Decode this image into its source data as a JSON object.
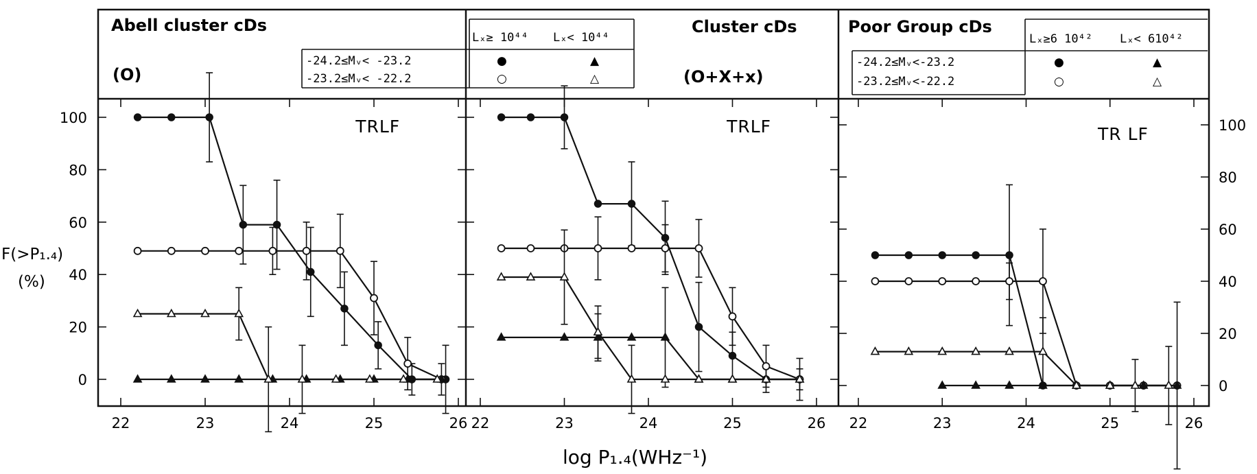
{
  "header": {
    "panels": [
      {
        "title": "Abell cluster cDs",
        "sample": "(O)"
      },
      {
        "title": "Cluster cDs",
        "sample": "(O+X+x)"
      },
      {
        "title": "Poor Group cDs"
      }
    ],
    "table_a": {
      "col_hi": "Lₓ≥ 10⁴⁴",
      "col_lo": "Lₓ< 10⁴⁴",
      "row1": "-24.2≤Mᵥ< -23.2",
      "row2": "-23.2≤Mᵥ< -22.2",
      "sym_filled_circle": "●",
      "sym_filled_tri": "▲",
      "sym_open_circle": "○",
      "sym_open_tri": "△"
    },
    "table_c": {
      "col_hi": "Lₓ≥6 10⁴²",
      "col_lo": "Lₓ< 610⁴²",
      "row1": "-24.2≤Mᵥ<-23.2",
      "row2": "-23.2≤Mᵥ<-22.2",
      "sym_filled_circle": "●",
      "sym_filled_tri": "▲",
      "sym_open_circle": "○",
      "sym_open_tri": "△"
    }
  },
  "axes": {
    "ylabel_line1": "F(>P₁.₄)",
    "ylabel_line2": "(%)",
    "xlabel": "log  P₁.₄(WHz⁻¹)",
    "y_ticks": [
      "0",
      "20",
      "40",
      "60",
      "80",
      "100"
    ],
    "x_ticks": [
      "22",
      "23",
      "24",
      "25",
      "26"
    ]
  },
  "chart_data": [
    {
      "type": "line",
      "panel": "Abell cluster cDs",
      "annotation": "TRLF",
      "xlabel": "log  P1.4(WHz-1)",
      "ylabel": "F(>P1.4) (%)",
      "xlim": [
        21.8,
        26.1
      ],
      "ylim": [
        -10,
        110
      ],
      "series": [
        {
          "marker": "filled-circle",
          "x": [
            22.2,
            22.6,
            23.05,
            23.45,
            23.85,
            24.25,
            24.65,
            25.05,
            25.45,
            25.85
          ],
          "y": [
            100,
            100,
            100,
            59,
            59,
            41,
            27,
            13,
            0,
            0
          ],
          "err": [
            0,
            0,
            17,
            15,
            17,
            17,
            14,
            9,
            6,
            13
          ]
        },
        {
          "marker": "open-circle",
          "x": [
            22.2,
            22.6,
            23.0,
            23.4,
            23.8,
            24.2,
            24.6,
            25.0,
            25.4,
            25.8
          ],
          "y": [
            49,
            49,
            49,
            49,
            49,
            49,
            49,
            31,
            6,
            0
          ],
          "err": [
            0,
            0,
            0,
            0,
            9,
            11,
            14,
            14,
            10,
            6
          ]
        },
        {
          "marker": "filled-triangle",
          "x": [
            22.2,
            22.6,
            23.0,
            23.4,
            23.8,
            24.2,
            24.6,
            25.0,
            25.4,
            25.8
          ],
          "y": [
            0,
            0,
            0,
            0,
            0,
            0,
            0,
            0,
            0,
            0
          ],
          "err": [
            0,
            0,
            0,
            0,
            0,
            0,
            0,
            0,
            0,
            0
          ]
        },
        {
          "marker": "open-triangle",
          "x": [
            22.2,
            22.6,
            23.0,
            23.4,
            23.75,
            24.15,
            24.55,
            24.95,
            25.35,
            25.75
          ],
          "y": [
            25,
            25,
            25,
            25,
            0,
            0,
            0,
            0,
            0,
            0
          ],
          "err": [
            0,
            0,
            0,
            10,
            20,
            13,
            0,
            0,
            0,
            0
          ]
        }
      ]
    },
    {
      "type": "line",
      "panel": "Cluster cDs",
      "annotation": "TRLF",
      "xlabel": "log  P1.4(WHz-1)",
      "ylabel": "F(>P1.4) (%)",
      "xlim": [
        21.8,
        26.1
      ],
      "ylim": [
        -10,
        110
      ],
      "series": [
        {
          "marker": "filled-circle",
          "x": [
            22.25,
            22.6,
            23.0,
            23.4,
            23.8,
            24.2,
            24.6,
            25.0,
            25.4,
            25.8
          ],
          "y": [
            100,
            100,
            100,
            67,
            67,
            54,
            20,
            9,
            0,
            0
          ],
          "err": [
            0,
            0,
            12,
            0,
            16,
            14,
            17,
            9,
            5,
            4
          ]
        },
        {
          "marker": "open-circle",
          "x": [
            22.25,
            22.6,
            23.0,
            23.4,
            23.8,
            24.2,
            24.6,
            25.0,
            25.4,
            25.8
          ],
          "y": [
            50,
            50,
            50,
            50,
            50,
            50,
            50,
            24,
            5,
            0
          ],
          "err": [
            0,
            0,
            0,
            12,
            0,
            9,
            11,
            11,
            8,
            8
          ]
        },
        {
          "marker": "filled-triangle",
          "x": [
            22.25,
            23.0,
            23.4,
            23.8,
            24.2,
            24.6,
            25.0,
            25.4,
            25.8
          ],
          "y": [
            16,
            16,
            16,
            16,
            16,
            0,
            0,
            0,
            0
          ],
          "err": [
            0,
            0,
            9,
            0,
            19,
            0,
            0,
            0,
            0
          ]
        },
        {
          "marker": "open-triangle",
          "x": [
            22.25,
            22.6,
            23.0,
            23.4,
            23.8,
            24.2,
            24.6,
            25.0,
            25.4,
            25.8
          ],
          "y": [
            39,
            39,
            39,
            18,
            0,
            0,
            0,
            0,
            0,
            0
          ],
          "err": [
            0,
            0,
            18,
            10,
            13,
            0,
            0,
            0,
            0,
            0
          ]
        }
      ]
    },
    {
      "type": "line",
      "panel": "Poor Group cDs",
      "annotation": "TR LF",
      "xlabel": "log  P1.4(WHz-1)",
      "ylabel": "F(>P1.4) (%)",
      "xlim": [
        21.8,
        26.1
      ],
      "ylim": [
        -10,
        110
      ],
      "series": [
        {
          "marker": "filled-circle",
          "x": [
            22.2,
            22.6,
            23.0,
            23.4,
            23.8,
            24.2,
            24.6,
            25.0,
            25.4,
            25.8
          ],
          "y": [
            50,
            50,
            50,
            50,
            50,
            0,
            0,
            0,
            0,
            0
          ],
          "err": [
            0,
            0,
            0,
            0,
            27,
            0,
            0,
            0,
            0,
            0
          ]
        },
        {
          "marker": "open-circle",
          "x": [
            22.2,
            22.6,
            23.0,
            23.4,
            23.8,
            24.2,
            24.6,
            25.0,
            25.4,
            25.8
          ],
          "y": [
            40,
            40,
            40,
            40,
            40,
            40,
            0,
            0,
            0,
            0
          ],
          "err": [
            0,
            0,
            0,
            0,
            7,
            20,
            0,
            0,
            0,
            0
          ]
        },
        {
          "marker": "filled-triangle",
          "x": [
            23.0,
            23.4,
            23.8,
            24.2,
            24.6,
            25.0,
            25.4,
            25.8
          ],
          "y": [
            0,
            0,
            0,
            0,
            0,
            0,
            0,
            0
          ],
          "err": [
            0,
            0,
            0,
            0,
            0,
            0,
            0,
            32
          ]
        },
        {
          "marker": "open-triangle",
          "x": [
            22.2,
            22.6,
            23.0,
            23.4,
            23.8,
            24.2,
            24.6,
            25.0,
            25.3,
            25.7
          ],
          "y": [
            13,
            13,
            13,
            13,
            13,
            13,
            0,
            0,
            0,
            0
          ],
          "err": [
            0,
            0,
            0,
            0,
            0,
            13,
            0,
            0,
            10,
            15
          ]
        }
      ]
    }
  ]
}
